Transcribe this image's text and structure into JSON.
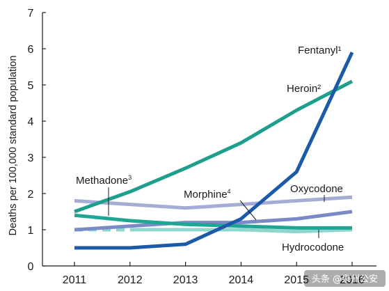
{
  "chart_data": {
    "type": "line",
    "title": "",
    "xlabel": "",
    "ylabel": "Deaths per 100,000 standard population",
    "x": [
      2011,
      2012,
      2013,
      2014,
      2015,
      2016
    ],
    "xlim": [
      2011,
      2016
    ],
    "ylim": [
      0,
      7
    ],
    "y_ticks": [
      0,
      1,
      2,
      3,
      4,
      5,
      6,
      7
    ],
    "grid": false,
    "legend": "inline labels",
    "series": [
      {
        "key": "heroin",
        "name": "Heroin",
        "sup": "2",
        "color": "#1e9e8c",
        "dashed_lead": false,
        "x": [
          2011,
          2012,
          2013,
          2014,
          2015,
          2016
        ],
        "values": [
          1.5,
          2.05,
          2.7,
          3.4,
          4.3,
          5.1
        ]
      },
      {
        "key": "fentanyl",
        "name": "Fentanyl",
        "sup": "1",
        "color": "#1b5aa6",
        "dashed_lead": false,
        "x": [
          2011,
          2012,
          2013,
          2014,
          2015,
          2016
        ],
        "values": [
          0.5,
          0.5,
          0.6,
          1.3,
          2.6,
          5.9
        ]
      },
      {
        "key": "methadone",
        "name": "Methadone",
        "sup": "3",
        "color": "#1fa594",
        "dashed_lead": false,
        "x": [
          2011,
          2012,
          2013,
          2014,
          2015,
          2016
        ],
        "values": [
          1.4,
          1.25,
          1.15,
          1.1,
          1.05,
          1.05
        ]
      },
      {
        "key": "oxycodone",
        "name": "Oxycodone",
        "sup": "",
        "color": "#a3add6",
        "dashed_lead": false,
        "x": [
          2011,
          2012,
          2013,
          2014,
          2015,
          2016
        ],
        "values": [
          1.8,
          1.7,
          1.6,
          1.7,
          1.8,
          1.9
        ]
      },
      {
        "key": "morphine",
        "name": "Morphine",
        "sup": "4",
        "color": "#7b8ac6",
        "dashed_lead": false,
        "x": [
          2011,
          2012,
          2013,
          2014,
          2015,
          2016
        ],
        "values": [
          1.0,
          1.1,
          1.2,
          1.2,
          1.3,
          1.5
        ]
      },
      {
        "key": "hydrocodone",
        "name": "Hydrocodone",
        "sup": "",
        "color": "#8fd6cc",
        "dashed_lead": true,
        "x": [
          2011,
          2012,
          2013,
          2014,
          2015,
          2016
        ],
        "values": [
          1.0,
          1.0,
          1.0,
          1.0,
          0.95,
          1.0
        ]
      }
    ]
  },
  "labels": {
    "fentanyl": "Fentanyl¹",
    "heroin": "Heroin²",
    "methadone": "Methadone",
    "methadone_sup": "3",
    "morphine": "Morphine",
    "morphine_sup": "4",
    "oxycodone": "Oxycodone",
    "hydrocodone": "Hydrocodone"
  },
  "watermark": {
    "text": "头条 @泉州公安",
    "color": "#ffffff"
  }
}
